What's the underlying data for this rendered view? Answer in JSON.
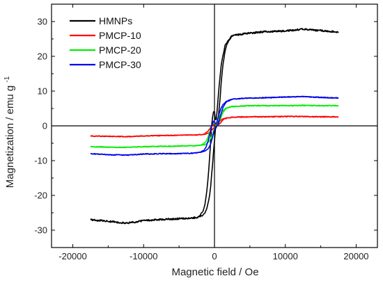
{
  "chart_data": {
    "type": "line",
    "title": "",
    "xlabel": "Magnetic field / Oe",
    "ylabel": "Magnetization / emu g",
    "ylabel_superscript": "-1",
    "xlim": [
      -23000,
      23000
    ],
    "ylim": [
      -35,
      35
    ],
    "xticks": [
      -20000,
      -10000,
      0,
      10000,
      20000
    ],
    "yticks": [
      -30,
      -20,
      -10,
      0,
      10,
      20,
      30
    ],
    "xtick_labels": [
      "-20000",
      "-10000",
      "0",
      "10000",
      "20000"
    ],
    "ytick_labels": [
      "-30",
      "-20",
      "-10",
      "0",
      "10",
      "20",
      "30"
    ],
    "grid": false,
    "zero_lines": true,
    "legend_position": "top-left",
    "series": [
      {
        "name": "HMNPs",
        "color": "#000000",
        "ms": 27.5,
        "hc": 400,
        "w": 650,
        "x": [
          -17500,
          -15000,
          -12500,
          -10000,
          -7500,
          -5000,
          -2500,
          -1500,
          -1000,
          -600,
          -300,
          0,
          300,
          600,
          1000,
          1500,
          2500,
          5000,
          7500,
          10000,
          12500,
          15000,
          17500
        ],
        "y": [
          -27.0,
          -27.4,
          -28.0,
          -27.3,
          -26.9,
          -26.7,
          -26.4,
          -25.6,
          -23.9,
          -20.7,
          -14.9,
          -7.8,
          3.3,
          11.4,
          18.8,
          23.3,
          26.0,
          26.7,
          27.1,
          27.3,
          27.8,
          27.4,
          27.0
        ]
      },
      {
        "name": "PMCP-10",
        "color": "#ff0000",
        "ms": 2.6,
        "hc": 400,
        "w": 650,
        "x": [
          -17500,
          -15000,
          -12500,
          -10000,
          -7500,
          -5000,
          -2500,
          -1500,
          -1000,
          -600,
          -300,
          0,
          300,
          600,
          1000,
          1500,
          2500,
          5000,
          7500,
          10000,
          12500,
          15000,
          17500
        ],
        "y": [
          -2.9,
          -3.0,
          -3.1,
          -2.9,
          -2.8,
          -2.7,
          -2.6,
          -2.5,
          -2.3,
          -2.0,
          -1.4,
          -0.7,
          0.3,
          1.1,
          1.8,
          2.2,
          2.5,
          2.6,
          2.6,
          2.7,
          2.7,
          2.6,
          2.6
        ]
      },
      {
        "name": "PMCP-20",
        "color": "#00ee00",
        "ms": 5.8,
        "hc": 400,
        "w": 650,
        "x": [
          -17500,
          -15000,
          -12500,
          -10000,
          -7500,
          -5000,
          -2500,
          -1500,
          -1000,
          -600,
          -300,
          0,
          300,
          600,
          1000,
          1500,
          2500,
          5000,
          7500,
          10000,
          12500,
          15000,
          17500
        ],
        "y": [
          -6.0,
          -6.1,
          -6.2,
          -6.0,
          -5.9,
          -5.8,
          -5.7,
          -5.5,
          -5.1,
          -4.4,
          -3.2,
          -1.6,
          0.7,
          2.5,
          4.0,
          5.0,
          5.6,
          5.8,
          5.8,
          5.8,
          5.9,
          5.8,
          5.8
        ]
      },
      {
        "name": "PMCP-30",
        "color": "#0000ee",
        "ms": 8.1,
        "hc": 400,
        "w": 650,
        "x": [
          -17500,
          -15000,
          -12500,
          -10000,
          -7500,
          -5000,
          -2500,
          -1500,
          -1000,
          -600,
          -300,
          0,
          300,
          600,
          1000,
          1500,
          2500,
          5000,
          7500,
          10000,
          12500,
          15000,
          17500
        ],
        "y": [
          -8.0,
          -8.3,
          -8.4,
          -8.1,
          -8.0,
          -8.0,
          -7.8,
          -7.5,
          -7.0,
          -6.1,
          -4.4,
          -2.2,
          1.0,
          3.4,
          5.6,
          6.9,
          7.7,
          8.0,
          8.1,
          8.3,
          8.4,
          8.2,
          8.0
        ]
      }
    ]
  }
}
